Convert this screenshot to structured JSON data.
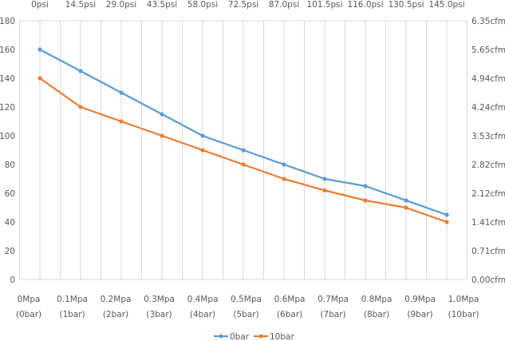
{
  "chart_data": {
    "type": "line",
    "title": "",
    "x": [
      0,
      1,
      2,
      3,
      4,
      5,
      6,
      7,
      8,
      9,
      10
    ],
    "x_tick_labels_bottom": [
      [
        "0Mpa",
        "(0bar)"
      ],
      [
        "0.1Mpa",
        "(1bar)"
      ],
      [
        "0.2Mpa",
        "(2bar)"
      ],
      [
        "0.3Mpa",
        "(3bar)"
      ],
      [
        "0.4Mpa",
        "(4bar)"
      ],
      [
        "0.5Mpa",
        "(5bar)"
      ],
      [
        "0.6Mpa",
        "(6bar)"
      ],
      [
        "0.7Mpa",
        "(7bar)"
      ],
      [
        "0.8Mpa",
        "(8bar)"
      ],
      [
        "0.9Mpa",
        "(9bar)"
      ],
      [
        "1.0Mpa",
        "(10bar)"
      ]
    ],
    "x_tick_labels_top": [
      "0psi",
      "14.5psi",
      "29.0psi",
      "43.5psi",
      "58.0psi",
      "72.5psi",
      "87.0psi",
      "101.5psi",
      "116.0psi",
      "130.5psi",
      "145.0psi"
    ],
    "ylim": [
      0,
      180
    ],
    "y_ticks": [
      0,
      20,
      40,
      60,
      80,
      100,
      120,
      140,
      160,
      180
    ],
    "y2_tick_labels": [
      "0.00cfm",
      "0.71cfm",
      "1.41cfm",
      "2.12cfm",
      "2.82cfm",
      "3.53cfm",
      "4.24cfm",
      "4.94cfm",
      "5.65cfm",
      "6.35cfm"
    ],
    "grid": true,
    "legend_position": "bottom",
    "series": [
      {
        "name": "0bar",
        "color": "#5B9BD5",
        "values": [
          160,
          145,
          130,
          115,
          100,
          90,
          80,
          70,
          65,
          55,
          45
        ]
      },
      {
        "name": "10bar",
        "color": "#ED7D31",
        "values": [
          140,
          120,
          110,
          100,
          90,
          80,
          70,
          62,
          55,
          50,
          40
        ]
      }
    ]
  }
}
